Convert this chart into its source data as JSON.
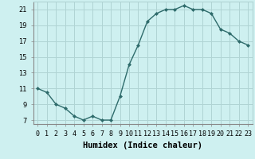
{
  "x": [
    0,
    1,
    2,
    3,
    4,
    5,
    6,
    7,
    8,
    9,
    10,
    11,
    12,
    13,
    14,
    15,
    16,
    17,
    18,
    19,
    20,
    21,
    22,
    23
  ],
  "y": [
    11,
    10.5,
    9,
    8.5,
    7.5,
    7,
    7.5,
    7,
    7,
    10,
    14,
    16.5,
    19.5,
    20.5,
    21,
    21,
    21.5,
    21,
    21,
    20.5,
    18.5,
    18,
    17,
    16.5
  ],
  "line_color": "#2e6b6b",
  "marker": "D",
  "marker_size": 2.0,
  "bg_color": "#cef0f0",
  "grid_color": "#b0d4d4",
  "xlabel": "Humidex (Indice chaleur)",
  "xlim": [
    -0.5,
    23.5
  ],
  "ylim": [
    6.5,
    22
  ],
  "yticks": [
    7,
    9,
    11,
    13,
    15,
    17,
    19,
    21
  ],
  "xtick_labels": [
    "0",
    "1",
    "2",
    "3",
    "4",
    "5",
    "6",
    "7",
    "8",
    "9",
    "10",
    "11",
    "12",
    "13",
    "14",
    "15",
    "16",
    "17",
    "18",
    "19",
    "20",
    "21",
    "22",
    "23"
  ],
  "xlabel_fontsize": 7.5,
  "tick_fontsize": 6.0,
  "linewidth": 1.0
}
